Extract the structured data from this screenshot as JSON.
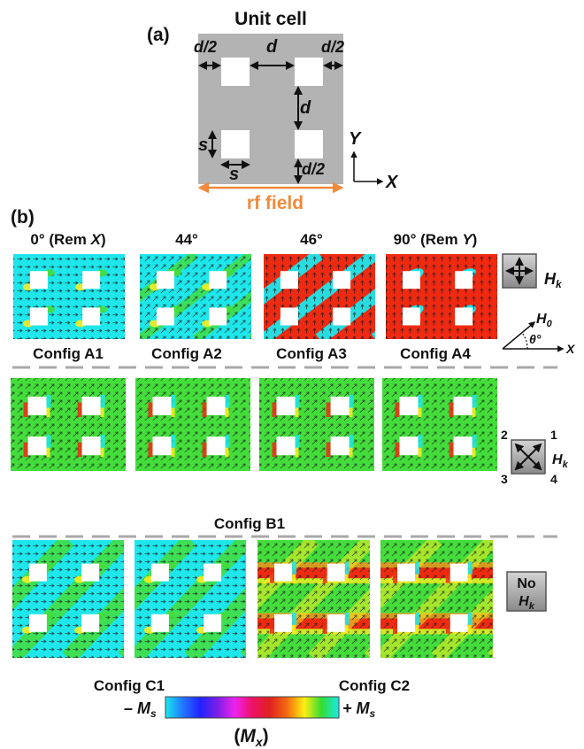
{
  "panel_a": {
    "label": "(a)",
    "title": "Unit cell",
    "dim_labels": {
      "d_half": "d/2",
      "d": "d",
      "s": "s"
    },
    "rf_field": "rf field",
    "axis_x": "X",
    "axis_y": "Y"
  },
  "panel_b": {
    "label": "(b)",
    "angle_headers": [
      {
        "prefix": "0° (Rem ",
        "italic": "X",
        "suffix": ")"
      },
      {
        "prefix": "44°",
        "italic": "",
        "suffix": ""
      },
      {
        "prefix": "46°",
        "italic": "",
        "suffix": ""
      },
      {
        "prefix": "90° (Rem ",
        "italic": "Y",
        "suffix": ")"
      }
    ],
    "row_a_labels": [
      "Config A1",
      "Config A2",
      "Config A3",
      "Config A4"
    ],
    "row_b_label": "Config B1",
    "row_c_labels": [
      "Config C1",
      "Config C2"
    ],
    "hk_symbol": "H",
    "hk_subscript": "k",
    "h0_symbol": "H",
    "h0_subscript": "0",
    "theta_label": "θ°",
    "angle_x_label": "X",
    "corner_numbers": [
      "2",
      "1",
      "3",
      "4"
    ],
    "no_hk_line1": "No",
    "no_hk_symbol": "H",
    "no_hk_subscript": "k"
  },
  "colorbar": {
    "minus_label": "– M",
    "plus_label": "+ M",
    "label_subscript": "s",
    "axis_symbol": "M",
    "axis_subscript": "x",
    "colors": [
      "#18e8ec",
      "#2277ff",
      "#2222ff",
      "#7b1fe6",
      "#ee22ee",
      "#ee1166",
      "#e02020",
      "#f26a10",
      "#ffee11",
      "#33dd33",
      "#18e8ec"
    ]
  },
  "field_colors": {
    "cyan": "#1ee6ea",
    "red": "#ee2a12",
    "green": "#44dd3c",
    "yellow": "#f4ee22",
    "orange": "#ff8a1a",
    "gray": "#b3b3b3",
    "orange_text": "#f08a3c"
  }
}
